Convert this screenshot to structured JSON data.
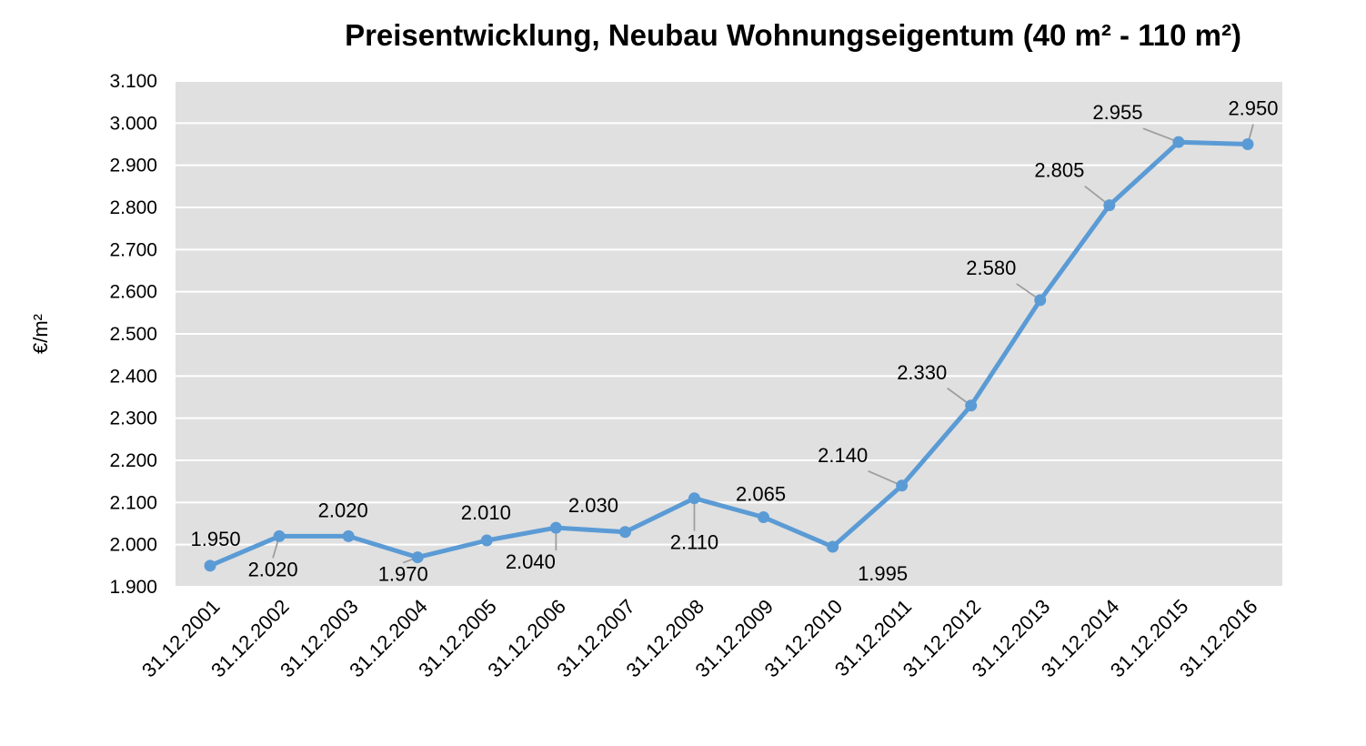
{
  "chart_data": {
    "type": "line",
    "title": "Preisentwicklung, Neubau Wohnungseigentum (40 m² - 110 m²)",
    "xlabel": "",
    "ylabel": "€/m²",
    "ylim": [
      1900,
      3100
    ],
    "ytick_step": 100,
    "yticks": [
      "1.900",
      "2.000",
      "2.100",
      "2.200",
      "2.300",
      "2.400",
      "2.500",
      "2.600",
      "2.700",
      "2.800",
      "2.900",
      "3.000",
      "3.100"
    ],
    "grid": true,
    "legend": "none",
    "categories": [
      "31.12.2001",
      "31.12.2002",
      "31.12.2003",
      "31.12.2004",
      "31.12.2005",
      "31.12.2006",
      "31.12.2007",
      "31.12.2008",
      "31.12.2009",
      "31.12.2010",
      "31.12.2011",
      "31.12.2012",
      "31.12.2013",
      "31.12.2014",
      "31.12.2015",
      "31.12.2016"
    ],
    "series": [
      {
        "values": [
          1950,
          2020,
          2020,
          1970,
          2010,
          2040,
          2030,
          2110,
          2065,
          1995,
          2140,
          2330,
          2580,
          2805,
          2955,
          2950
        ],
        "data_labels": [
          "1.950",
          "2.020",
          "2.020",
          "1.970",
          "2.010",
          "2.040",
          "2.030",
          "2.110",
          "2.065",
          "1.995",
          "2.140",
          "2.330",
          "2.580",
          "2.805",
          "2.955",
          "2.950"
        ],
        "color": "#5b9bd5"
      }
    ],
    "colors": {
      "plot_background": "#e0e0e0",
      "gridline": "#ffffff",
      "leader_line": "#9e9e9e"
    }
  }
}
